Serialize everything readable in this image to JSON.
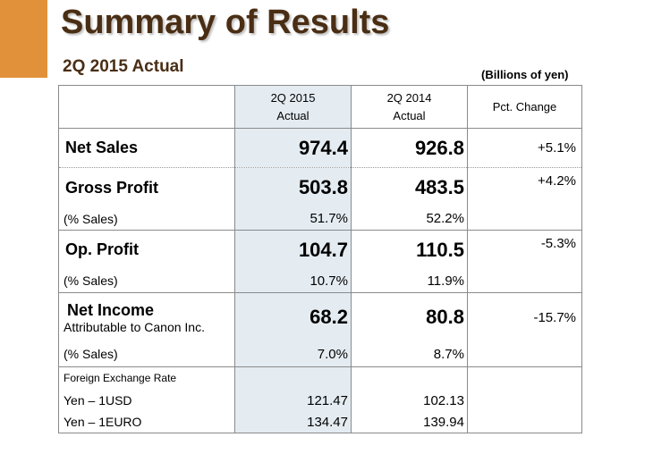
{
  "header": {
    "title": "Summary of Results",
    "subtitle": "2Q 2015 Actual",
    "units": "(Billions of yen)"
  },
  "table": {
    "columns": {
      "col1_line1": "2Q 2015",
      "col1_line2": "Actual",
      "col2_line1": "2Q 2014",
      "col2_line2": "Actual",
      "col3": "Pct.  Change"
    },
    "net_sales": {
      "label": "Net Sales",
      "v2015": "974.4",
      "v2014": "926.8",
      "change": "+5.1%"
    },
    "gross_profit": {
      "label": "Gross Profit",
      "v2015": "503.8",
      "v2014": "483.5",
      "change": "+4.2%",
      "pct_label": "(% Sales)",
      "pct2015": "51.7%",
      "pct2014": "52.2%"
    },
    "op_profit": {
      "label": "Op. Profit",
      "v2015": "104.7",
      "v2014": "110.5",
      "change": "-5.3%",
      "pct_label": "(% Sales)",
      "pct2015": "10.7%",
      "pct2014": "11.9%"
    },
    "net_income": {
      "label": "Net Income",
      "sublabel": "Attributable to Canon Inc.",
      "v2015": "68.2",
      "v2014": "80.8",
      "change": "-15.7%",
      "pct_label": "(% Sales)",
      "pct2015": "7.0%",
      "pct2014": "8.7%"
    },
    "fx": {
      "label": "Foreign Exchange Rate",
      "usd_label": "Yen – 1USD",
      "usd2015": "121.47",
      "usd2014": "102.13",
      "euro_label": "Yen – 1EURO",
      "euro2015": "134.47",
      "euro2014": "139.94"
    }
  },
  "colors": {
    "accent": "#e0913a",
    "title": "#4a2e14",
    "highlight": "#e4ecf2"
  }
}
